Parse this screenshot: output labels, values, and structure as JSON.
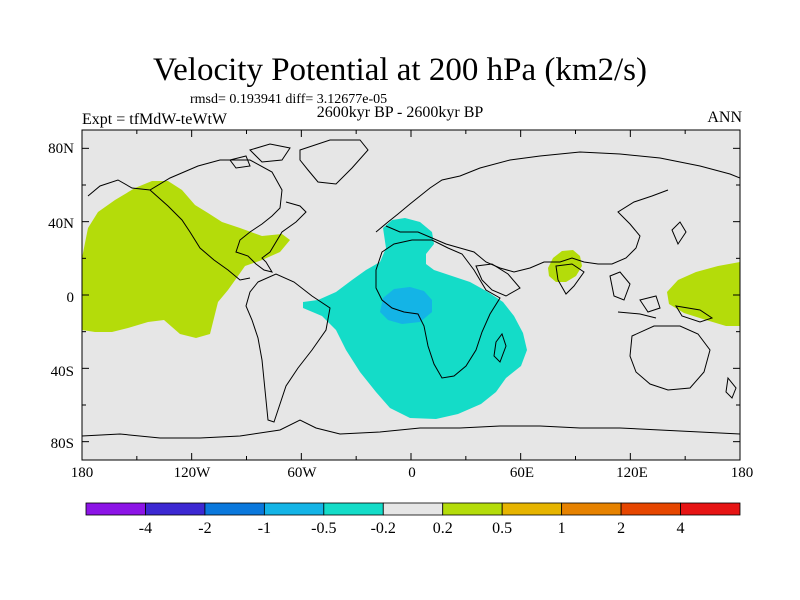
{
  "map": {
    "title": "Velocity Potential at 200 hPa (km2/s)",
    "stats": "rmsd= 0.193941 diff= 3.12677e-05",
    "experiment": "Expt = tfMdW-teWtW",
    "period": "2600kyr BP - 2600kyr BP",
    "season": "ANN",
    "projection": "cylindrical equidistant",
    "lon_range": [
      -180,
      180
    ],
    "lat_range": [
      -90,
      90
    ],
    "lat_ticks": [
      {
        "value": 80,
        "label": "80N"
      },
      {
        "value": 40,
        "label": "40N"
      },
      {
        "value": 0,
        "label": "0"
      },
      {
        "value": -40,
        "label": "40S"
      },
      {
        "value": -80,
        "label": "80S"
      }
    ],
    "lon_ticks": [
      {
        "value": -180,
        "label": "180"
      },
      {
        "value": -120,
        "label": "120W"
      },
      {
        "value": -60,
        "label": "60W"
      },
      {
        "value": 0,
        "label": "0"
      },
      {
        "value": 60,
        "label": "60E"
      },
      {
        "value": 120,
        "label": "120E"
      },
      {
        "value": 180,
        "label": "180"
      }
    ],
    "colors": {
      "background": "#e6e6e6",
      "positive": "#b4dc0a",
      "negative": "#14dcc8",
      "strong_negative": "#14b4e6",
      "coastline": "#000000"
    }
  },
  "colorbar": {
    "colors": [
      "#8c14e6",
      "#3c28d2",
      "#0a78dc",
      "#14b4e6",
      "#14dcc8",
      "#e6e6e6",
      "#b4dc0a",
      "#e6b400",
      "#e68200",
      "#e64600",
      "#e61414"
    ],
    "labels": [
      "-4",
      "-2",
      "-1",
      "-0.5",
      "-0.2",
      "0.2",
      "0.5",
      "1",
      "2",
      "4"
    ]
  }
}
